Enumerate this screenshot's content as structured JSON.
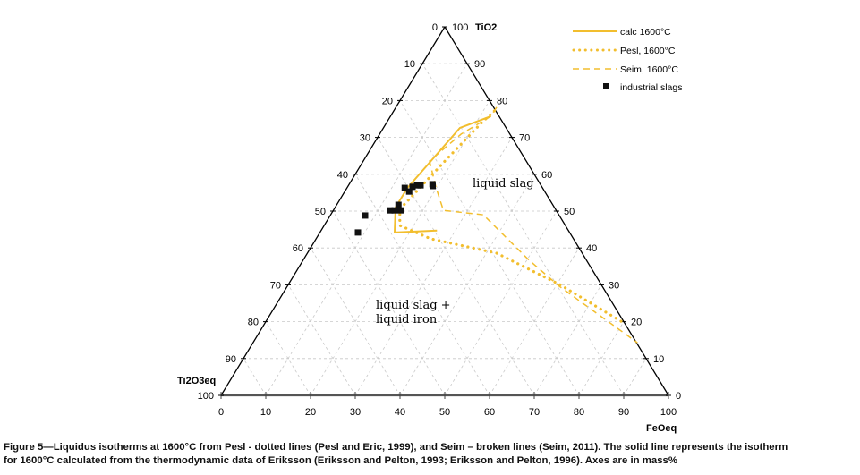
{
  "chart_data": {
    "type": "ternary",
    "axes": {
      "top": {
        "label": "TiO2",
        "range": [
          0,
          100
        ],
        "ticks": [
          0,
          10,
          20,
          30,
          40,
          50,
          60,
          70,
          80,
          90,
          100
        ]
      },
      "left": {
        "label": "Ti2O3eq",
        "range": [
          0,
          100
        ],
        "ticks": [
          0,
          10,
          20,
          30,
          40,
          50,
          60,
          70,
          80,
          90,
          100
        ]
      },
      "bottom": {
        "label": "FeOeq",
        "range": [
          0,
          100
        ],
        "ticks": [
          0,
          10,
          20,
          30,
          40,
          50,
          60,
          70,
          80,
          90,
          100
        ]
      }
    },
    "tick_labels": {
      "left": [
        "0",
        "10",
        "20",
        "30",
        "40",
        "50",
        "60",
        "70",
        "80",
        "90",
        "100"
      ],
      "right": [
        "100",
        "90",
        "80",
        "70",
        "60",
        "50",
        "40",
        "30",
        "20",
        "10",
        "0"
      ],
      "bottom": [
        "0",
        "10",
        "20",
        "30",
        "40",
        "50",
        "60",
        "70",
        "80",
        "90",
        "100"
      ]
    },
    "grid": true,
    "grid_step": 10,
    "legend_position": "top-right",
    "accent_color": "#F2BE2E",
    "series": [
      {
        "name": "calc 1600°C",
        "style": "solid",
        "points": [
          {
            "TiO2": 44.7,
            "FeOeq": 25.9,
            "Ti2O3eq": 29.4
          },
          {
            "TiO2": 44.2,
            "FeOeq": 16.7,
            "Ti2O3eq": 39.1
          },
          {
            "TiO2": 51.0,
            "FeOeq": 13.5,
            "Ti2O3eq": 35.5
          },
          {
            "TiO2": 56.3,
            "FeOeq": 13.5,
            "Ti2O3eq": 30.2
          },
          {
            "TiO2": 72.6,
            "FeOeq": 17.1,
            "Ti2O3eq": 10.3
          },
          {
            "TiO2": 75.7,
            "FeOeq": 22.4,
            "Ti2O3eq": 1.9
          }
        ]
      },
      {
        "name": "Pesl, 1600°C",
        "style": "dotted",
        "points": [
          {
            "TiO2": 77.2,
            "FeOeq": 22.5,
            "Ti2O3eq": 0.3
          },
          {
            "TiO2": 73.8,
            "FeOeq": 21.2,
            "Ti2O3eq": 5.0
          },
          {
            "TiO2": 63.1,
            "FeOeq": 18.1,
            "Ti2O3eq": 18.8
          },
          {
            "TiO2": 50.5,
            "FeOeq": 14.7,
            "Ti2O3eq": 34.8
          },
          {
            "TiO2": 46.1,
            "FeOeq": 16.9,
            "Ti2O3eq": 37.0
          },
          {
            "TiO2": 42.5,
            "FeOeq": 25.6,
            "Ti2O3eq": 31.9
          },
          {
            "TiO2": 38.6,
            "FeOeq": 42.3,
            "Ti2O3eq": 19.1
          },
          {
            "TiO2": 30.1,
            "FeOeq": 60.6,
            "Ti2O3eq": 9.3
          },
          {
            "TiO2": 19.7,
            "FeOeq": 80.1,
            "Ti2O3eq": 0.2
          }
        ]
      },
      {
        "name": "Seim, 1600°C",
        "style": "dashed",
        "points": [
          {
            "TiO2": 78.2,
            "FeOeq": 22.5,
            "Ti2O3eq": -0.7
          },
          {
            "TiO2": 75.7,
            "FeOeq": 22.4,
            "Ti2O3eq": 1.9
          },
          {
            "TiO2": 70.9,
            "FeOeq": 18.2,
            "Ti2O3eq": 10.9
          },
          {
            "TiO2": 63.6,
            "FeOeq": 14.8,
            "Ti2O3eq": 21.6
          },
          {
            "TiO2": 56.3,
            "FeOeq": 19.9,
            "Ti2O3eq": 23.8
          },
          {
            "TiO2": 50.2,
            "FeOeq": 24.6,
            "Ti2O3eq": 25.2
          },
          {
            "TiO2": 49.0,
            "FeOeq": 34.1,
            "Ti2O3eq": 16.9
          },
          {
            "TiO2": 36.9,
            "FeOeq": 50.2,
            "Ti2O3eq": 12.9
          },
          {
            "TiO2": 29.6,
            "FeOeq": 60.8,
            "Ti2O3eq": 9.6
          },
          {
            "TiO2": 14.3,
            "FeOeq": 85.9,
            "Ti2O3eq": -0.2
          }
        ]
      }
    ],
    "scatter": {
      "name": "industrial slags",
      "points": [
        {
          "TiO2": 50.2,
          "FeOeq": 12.7,
          "Ti2O3eq": 37.1
        },
        {
          "TiO2": 50.2,
          "FeOeq": 13.7,
          "Ti2O3eq": 36.1
        },
        {
          "TiO2": 51.7,
          "FeOeq": 13.8,
          "Ti2O3eq": 34.5
        },
        {
          "TiO2": 50.2,
          "FeOeq": 15.1,
          "Ti2O3eq": 34.7
        },
        {
          "TiO2": 56.3,
          "FeOeq": 12.9,
          "Ti2O3eq": 30.8
        },
        {
          "TiO2": 55.3,
          "FeOeq": 14.4,
          "Ti2O3eq": 30.3
        },
        {
          "TiO2": 56.6,
          "FeOeq": 14.5,
          "Ti2O3eq": 28.9
        },
        {
          "TiO2": 57.0,
          "FeOeq": 15.3,
          "Ti2O3eq": 27.7
        },
        {
          "TiO2": 57.0,
          "FeOeq": 16.1,
          "Ti2O3eq": 26.9
        },
        {
          "TiO2": 57.3,
          "FeOeq": 18.6,
          "Ti2O3eq": 24.1
        },
        {
          "TiO2": 56.8,
          "FeOeq": 18.9,
          "Ti2O3eq": 24.3
        },
        {
          "TiO2": 48.8,
          "FeOeq": 7.8,
          "Ti2O3eq": 43.4
        },
        {
          "TiO2": 44.2,
          "FeOeq": 8.5,
          "Ti2O3eq": 47.3
        }
      ]
    },
    "annotations": [
      {
        "text": "liquid slag",
        "TiO2": 57.5,
        "FeOeq": 27.5
      },
      {
        "text_lines": [
          "liquid slag +",
          "liquid iron"
        ],
        "TiO2": 23.5,
        "FeOeq": 34
      }
    ],
    "legend": [
      {
        "label": "calc 1600°C",
        "style": "solid"
      },
      {
        "label": "Pesl, 1600°C",
        "style": "dotted"
      },
      {
        "label": "Seim, 1600°C",
        "style": "dashed"
      },
      {
        "label": "industrial slags",
        "style": "square-marker"
      }
    ]
  },
  "caption": {
    "line1": "Figure 5—Liquidus isotherms at 1600°C from Pesl - dotted lines (Pesl and Eric, 1999), and Seim – broken lines (Seim, 2011). The solid line represents the isotherm",
    "line2": "for 1600°C calculated from the thermodynamic data of Eriksson (Eriksson and Pelton, 1993; Eriksson and Pelton, 1996). Axes are in mass%"
  }
}
